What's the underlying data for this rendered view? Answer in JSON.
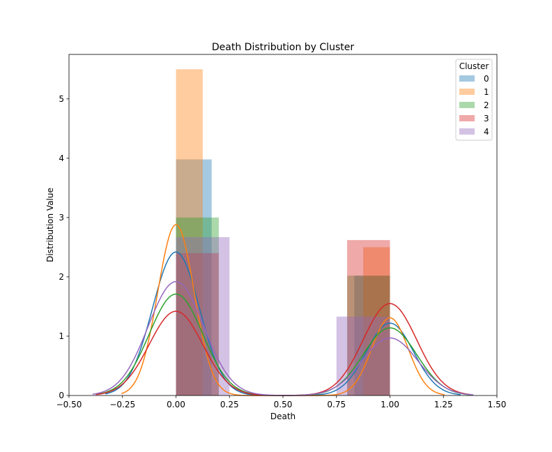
{
  "chart_data": {
    "type": "histogram_kde",
    "title": "Death Distribution by Cluster",
    "xlabel": "Death",
    "ylabel": "Distribution Value",
    "xlim": [
      -0.5,
      1.5
    ],
    "ylim": [
      0,
      5.75
    ],
    "x_ticks": [
      -0.5,
      -0.25,
      0,
      0.25,
      0.5,
      0.75,
      1,
      1.25,
      1.5
    ],
    "x_tick_labels": [
      "−0.50",
      "−0.25",
      "0.00",
      "0.25",
      "0.50",
      "0.75",
      "1.00",
      "1.25",
      "1.50"
    ],
    "y_ticks": [
      0,
      1,
      2,
      3,
      4,
      5
    ],
    "y_tick_labels": [
      "0",
      "1",
      "2",
      "3",
      "4",
      "5"
    ],
    "legend": {
      "title": "Cluster",
      "position": "upper-right"
    },
    "grid": false,
    "series": [
      {
        "name": "0",
        "color": "#1f77b4",
        "bins": [
          {
            "x0": 0.0,
            "x1": 0.1667,
            "height": 3.98
          },
          {
            "x0": 0.8333,
            "x1": 1.0,
            "height": 2.02
          }
        ],
        "kde": {
          "peaks": [
            {
              "mu": 0.0,
              "height": 2.42
            },
            {
              "mu": 1.0,
              "height": 1.22
            }
          ],
          "sigma": 0.11
        }
      },
      {
        "name": "1",
        "color": "#ff7f0e",
        "bins": [
          {
            "x0": 0.0,
            "x1": 0.125,
            "height": 5.5
          },
          {
            "x0": 0.875,
            "x1": 1.0,
            "height": 2.5
          }
        ],
        "kde": {
          "peaks": [
            {
              "mu": 0.0,
              "height": 2.88
            },
            {
              "mu": 1.0,
              "height": 1.31
            }
          ],
          "sigma": 0.085
        }
      },
      {
        "name": "2",
        "color": "#2ca02c",
        "bins": [
          {
            "x0": 0.0,
            "x1": 0.2,
            "height": 3.0
          },
          {
            "x0": 0.8,
            "x1": 1.0,
            "height": 2.02
          }
        ],
        "kde": {
          "peaks": [
            {
              "mu": 0.0,
              "height": 1.71
            },
            {
              "mu": 1.0,
              "height": 1.14
            }
          ],
          "sigma": 0.125
        }
      },
      {
        "name": "3",
        "color": "#d62728",
        "bins": [
          {
            "x0": 0.0,
            "x1": 0.2,
            "height": 2.4
          },
          {
            "x0": 0.8,
            "x1": 1.0,
            "height": 2.62
          }
        ],
        "kde": {
          "peaks": [
            {
              "mu": 0.0,
              "height": 1.42
            },
            {
              "mu": 1.0,
              "height": 1.55
            }
          ],
          "sigma": 0.125
        }
      },
      {
        "name": "4",
        "color": "#9467bd",
        "bins": [
          {
            "x0": 0.0,
            "x1": 0.25,
            "height": 2.67
          },
          {
            "x0": 0.75,
            "x1": 1.0,
            "height": 1.33
          }
        ],
        "kde": {
          "peaks": [
            {
              "mu": 0.0,
              "height": 1.92
            },
            {
              "mu": 1.0,
              "height": 0.97
            }
          ],
          "sigma": 0.13
        }
      }
    ]
  }
}
